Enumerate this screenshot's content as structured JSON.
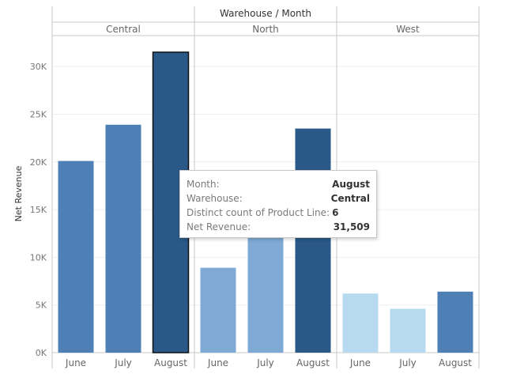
{
  "chart_data": {
    "type": "bar",
    "title": "Warehouse / Month",
    "ylabel": "Net Revenue",
    "ylim": [
      0,
      33000
    ],
    "yticks": [
      0,
      5000,
      10000,
      15000,
      20000,
      25000,
      30000
    ],
    "ytick_labels": [
      "0K",
      "5K",
      "10K",
      "15K",
      "20K",
      "25K",
      "30K"
    ],
    "panels": [
      "Central",
      "North",
      "West"
    ],
    "categories": [
      "June",
      "July",
      "August"
    ],
    "series": [
      {
        "panel": "Central",
        "values": [
          20100,
          23900,
          31509
        ],
        "colors": [
          "#4e7fb5",
          "#4e7fb5",
          "#2a5887"
        ]
      },
      {
        "panel": "North",
        "values": [
          8900,
          12200,
          23500
        ],
        "colors": [
          "#7eaad5",
          "#7eaad5",
          "#2a5887"
        ]
      },
      {
        "panel": "West",
        "values": [
          6200,
          4600,
          6400
        ],
        "colors": [
          "#b8daf1",
          "#b8daf1",
          "#4e7fb5"
        ]
      }
    ],
    "highlight": {
      "panel": "Central",
      "category": "August"
    },
    "grid": true
  },
  "tooltip": {
    "rows": [
      {
        "key": "Month:",
        "value": "August"
      },
      {
        "key": "Warehouse:",
        "value": "Central"
      },
      {
        "key": "Distinct count of Product Line:",
        "value": "6"
      },
      {
        "key": "Net Revenue:",
        "value": "31,509"
      }
    ]
  }
}
